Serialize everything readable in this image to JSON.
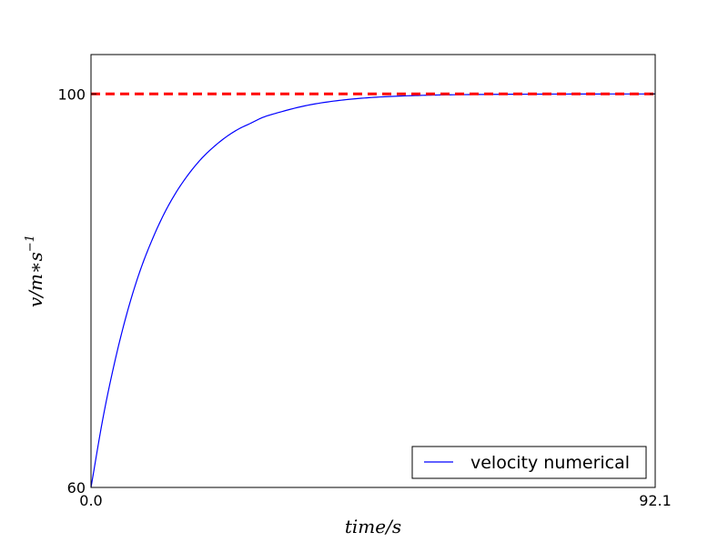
{
  "chart_data": {
    "type": "line",
    "xlabel": "time/s",
    "ylabel": "v/m∗s",
    "ylabel_exponent": "−1",
    "xlim": [
      0.0,
      92.1
    ],
    "ylim": [
      60,
      104
    ],
    "xticks": [
      0.0,
      92.1
    ],
    "xtick_labels": [
      "0.0",
      "92.1"
    ],
    "yticks": [
      60,
      100
    ],
    "ytick_labels": [
      "60",
      "100"
    ],
    "grid": false,
    "legend_position": "lower-right",
    "series": [
      {
        "name": "velocity numerical",
        "color": "#0000ff",
        "style": "solid",
        "x": [
          0,
          2,
          4,
          6,
          8,
          10,
          12,
          14,
          16,
          18,
          20,
          22,
          24,
          26,
          28,
          30,
          35,
          40,
          45,
          50,
          55,
          60,
          70,
          80,
          92.1
        ],
        "y": [
          60,
          67.2,
          73.1,
          78.0,
          82.0,
          85.2,
          87.9,
          90.1,
          91.9,
          93.4,
          94.6,
          95.6,
          96.4,
          97.0,
          97.6,
          98.0,
          98.8,
          99.3,
          99.6,
          99.77,
          99.87,
          99.92,
          99.97,
          99.99,
          100.0
        ]
      },
      {
        "name": "",
        "color": "#ff0000",
        "style": "dashed",
        "x": [
          0,
          92.1
        ],
        "y": [
          100,
          100
        ]
      }
    ]
  }
}
